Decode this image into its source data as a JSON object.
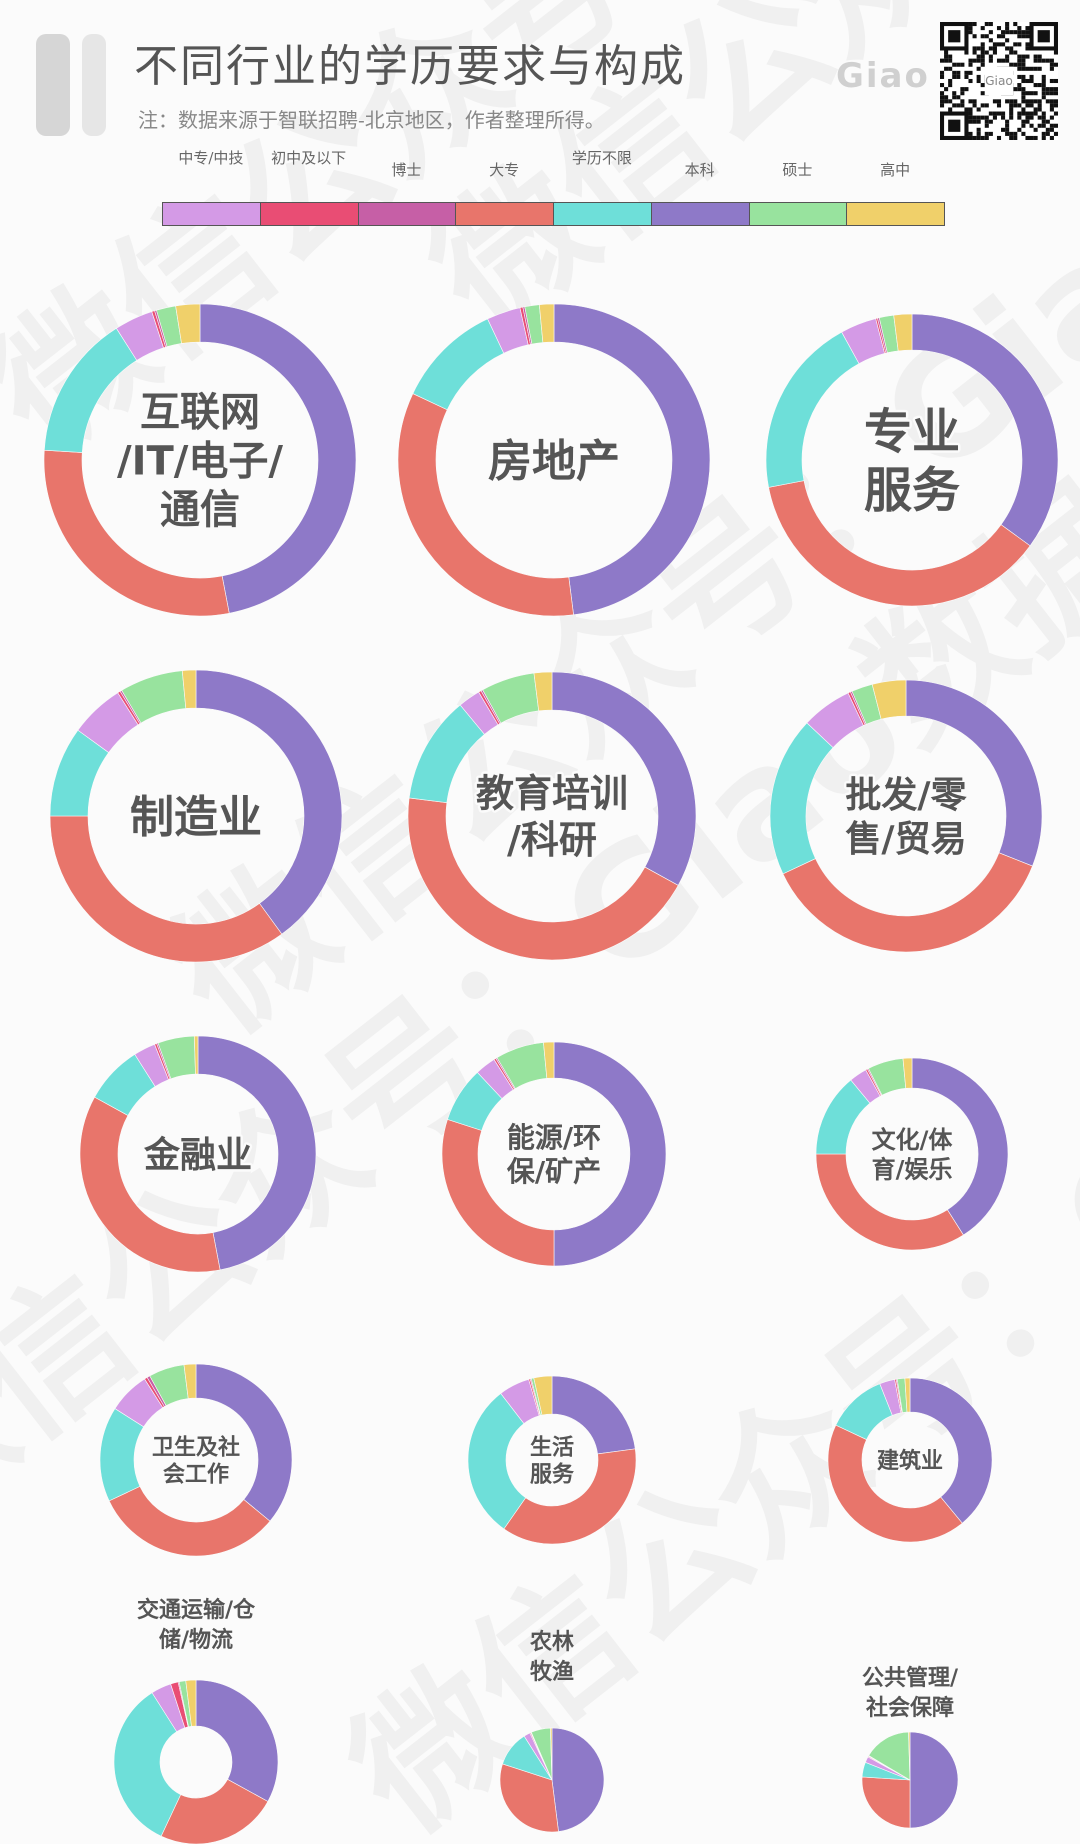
{
  "header": {
    "title": "不同行业的学历要求与构成",
    "note": "注：数据来源于智联招聘-北京地区，作者整理所得。",
    "brand": "Giao"
  },
  "watermark": {
    "text": "微信公众号：Giao数据"
  },
  "legend": [
    {
      "label": "中专/中技",
      "color": "#d49ae6"
    },
    {
      "label": "初中及以下",
      "color": "#e94d74"
    },
    {
      "label": "博士",
      "color": "#c65fa6"
    },
    {
      "label": "大专",
      "color": "#e8756b"
    },
    {
      "label": "学历不限",
      "color": "#6edfd9"
    },
    {
      "label": "本科",
      "color": "#8e79c8"
    },
    {
      "label": "硕士",
      "color": "#98e39e"
    },
    {
      "label": "高中",
      "color": "#f0d06a"
    }
  ],
  "chart_data": {
    "type": "donut",
    "unit": "share",
    "series_order": [
      "中专/中技",
      "初中及以下",
      "博士",
      "大专",
      "学历不限",
      "本科",
      "硕士",
      "高中"
    ],
    "charts": [
      {
        "industry": "互联网/IT/电子/通信",
        "values": {
          "本科": 47,
          "大专": 29,
          "学历不限": 15,
          "中专/中技": 4,
          "硕士": 2,
          "高中": 2.5,
          "初中及以下": 0.3,
          "博士": 0.2
        }
      },
      {
        "industry": "房地产",
        "values": {
          "本科": 48,
          "大专": 34,
          "学历不限": 11,
          "中专/中技": 3.5,
          "硕士": 1.5,
          "高中": 1.5,
          "初中及以下": 0.3,
          "博士": 0.2
        }
      },
      {
        "industry": "专业服务",
        "values": {
          "大专": 37,
          "本科": 35,
          "学历不限": 20,
          "中专/中技": 4,
          "硕士": 1.6,
          "高中": 2,
          "初中及以下": 0.2,
          "博士": 0.2
        }
      },
      {
        "industry": "制造业",
        "values": {
          "本科": 40,
          "大专": 35,
          "学历不限": 10,
          "硕士": 7,
          "中专/中技": 6,
          "高中": 1.5,
          "初中及以下": 0.3,
          "博士": 0.2
        }
      },
      {
        "industry": "教育培训/科研",
        "values": {
          "大专": 44,
          "本科": 33,
          "学历不限": 12,
          "硕士": 6,
          "中专/中技": 2.5,
          "高中": 2,
          "初中及以下": 0.3,
          "博士": 0.2
        }
      },
      {
        "industry": "批发/零售/贸易",
        "values": {
          "大专": 37,
          "本科": 31,
          "学历不限": 19,
          "中专/中技": 6,
          "高中": 4,
          "硕士": 2.5,
          "初中及以下": 0.3,
          "博士": 0.2
        }
      },
      {
        "industry": "金融业",
        "values": {
          "本科": 47,
          "大专": 36,
          "学历不限": 8,
          "硕士": 5,
          "中专/中技": 3,
          "高中": 0.5,
          "初中及以下": 0.3,
          "博士": 0.2
        }
      },
      {
        "industry": "能源/环保/矿产",
        "values": {
          "本科": 50,
          "大专": 30,
          "学历不限": 8,
          "硕士": 7,
          "中专/中技": 3,
          "高中": 1.5,
          "初中及以下": 0.3,
          "博士": 0.2
        }
      },
      {
        "industry": "文化/体育/娱乐",
        "values": {
          "本科": 41,
          "大专": 34,
          "学历不限": 14,
          "硕士": 6,
          "中专/中技": 3,
          "高中": 1.5,
          "初中及以下": 0.3,
          "博士": 0.2
        }
      },
      {
        "industry": "卫生及社会工作",
        "values": {
          "本科": 36,
          "大专": 32,
          "学历不限": 16,
          "中专/中技": 7,
          "硕士": 6,
          "高中": 2,
          "初中及以下": 0.5,
          "博士": 0.5
        }
      },
      {
        "industry": "生活服务",
        "values": {
          "大专": 37,
          "学历不限": 30,
          "本科": 23,
          "中专/中技": 6,
          "高中": 3.5,
          "硕士": 0.5,
          "初中及以下": 0.3,
          "博士": 0.2
        }
      },
      {
        "industry": "建筑业",
        "values": {
          "大专": 43,
          "本科": 39,
          "学历不限": 12,
          "中专/中技": 3,
          "硕士": 1.5,
          "高中": 1,
          "初中及以下": 0.3,
          "博士": 0.2
        }
      },
      {
        "industry": "交通运输/仓储/物流",
        "values": {
          "学历不限": 34,
          "本科": 33,
          "大专": 24,
          "中专/中技": 4,
          "高中": 2,
          "初中及以下": 1.5,
          "硕士": 1.3,
          "博士": 0.2
        }
      },
      {
        "industry": "农林牧渔",
        "values": {
          "本科": 48,
          "大专": 32,
          "学历不限": 11,
          "硕士": 6,
          "中专/中技": 2,
          "高中": 0.5,
          "初中及以下": 0.3,
          "博士": 0.2
        }
      },
      {
        "industry": "公共管理/社会保障",
        "values": {
          "本科": 50,
          "大专": 26,
          "硕士": 16,
          "学历不限": 5,
          "中专/中技": 2,
          "高中": 0.5,
          "初中及以下": 0.3,
          "博士": 0.2
        }
      }
    ]
  }
}
